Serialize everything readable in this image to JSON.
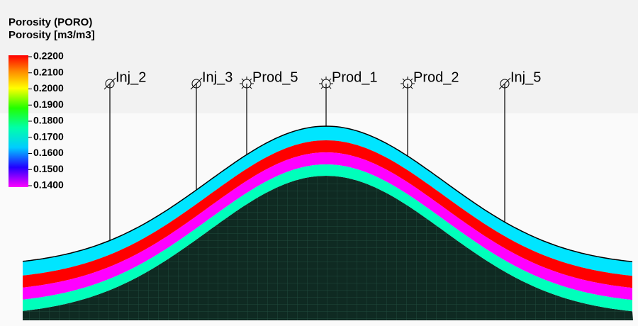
{
  "legend": {
    "title": "Porosity (PORO)",
    "unit": "Porosity [m3/m3]",
    "labels": [
      "0.2200",
      "0.2100",
      "0.2000",
      "0.1900",
      "0.1800",
      "0.1700",
      "0.1600",
      "0.1500",
      "0.1400"
    ]
  },
  "wells": [
    {
      "name": "Inj_2",
      "kind": "injector"
    },
    {
      "name": "Inj_3",
      "kind": "injector"
    },
    {
      "name": "Prod_5",
      "kind": "producer"
    },
    {
      "name": "Prod_1",
      "kind": "producer"
    },
    {
      "name": "Prod_2",
      "kind": "producer"
    },
    {
      "name": "Inj_5",
      "kind": "injector"
    }
  ]
}
